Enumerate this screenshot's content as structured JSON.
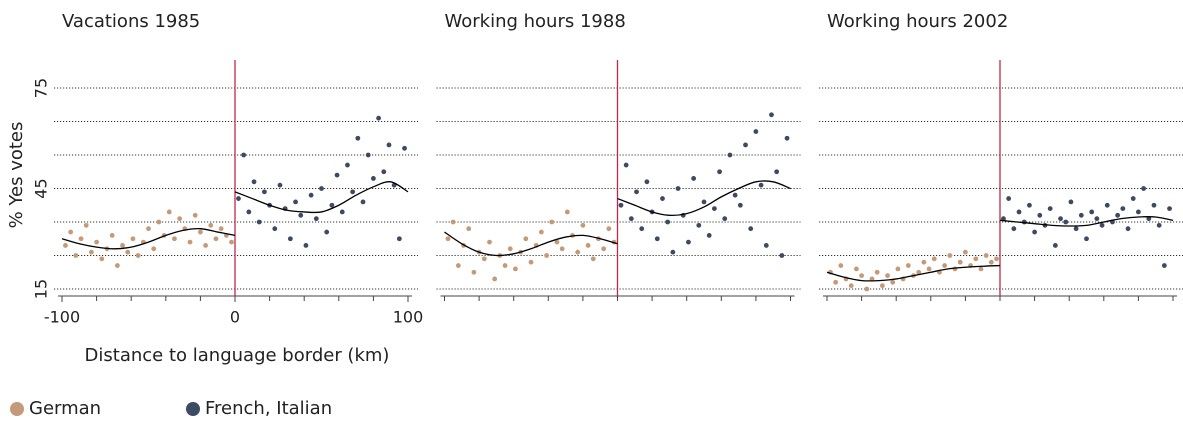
{
  "chart_data": [
    {
      "type": "scatter",
      "title": "Vacations 1985",
      "ylabel": "% Yes votes",
      "xlabel": "Distance to language border (km)",
      "xlim": [
        -100,
        100
      ],
      "ylim": [
        15,
        75
      ],
      "xticks": [
        -100,
        0,
        100
      ],
      "yticks": [
        15,
        45,
        75
      ],
      "ygrid": [
        15,
        25,
        35,
        45,
        55,
        65,
        75
      ],
      "xminor_ticks": [
        -80,
        -60,
        -40,
        -20,
        20,
        40,
        60,
        80
      ],
      "threshold": 0,
      "threshold_color": "#c0284a",
      "legend": "bottom-left",
      "series": [
        {
          "name": "German",
          "color": "#c49a78",
          "x": [
            -98,
            -95,
            -92,
            -89,
            -86,
            -83,
            -80,
            -77,
            -74,
            -71,
            -68,
            -65,
            -62,
            -59,
            -56,
            -53,
            -50,
            -47,
            -44,
            -41,
            -38,
            -35,
            -32,
            -29,
            -26,
            -23,
            -20,
            -17,
            -14,
            -11,
            -8,
            -5,
            -2
          ],
          "values": [
            28,
            32,
            25,
            30,
            34,
            26,
            29,
            24,
            27,
            31,
            22,
            28,
            26,
            30,
            25,
            29,
            33,
            27,
            35,
            31,
            38,
            30,
            36,
            33,
            29,
            37,
            32,
            28,
            34,
            30,
            33,
            31,
            29
          ]
        },
        {
          "name": "French, Italian",
          "color": "#3d4a63",
          "x": [
            2,
            5,
            8,
            11,
            14,
            17,
            20,
            23,
            26,
            29,
            32,
            35,
            38,
            41,
            44,
            47,
            50,
            53,
            56,
            59,
            62,
            65,
            68,
            71,
            74,
            77,
            80,
            83,
            86,
            89,
            92,
            95,
            98
          ],
          "values": [
            42,
            55,
            38,
            47,
            35,
            44,
            40,
            33,
            46,
            39,
            30,
            41,
            37,
            28,
            43,
            36,
            45,
            32,
            40,
            49,
            38,
            52,
            44,
            60,
            41,
            55,
            48,
            66,
            50,
            58,
            46,
            30,
            57
          ]
        }
      ],
      "fits": [
        {
          "color": "#000000",
          "x": [
            -100,
            -90,
            -80,
            -70,
            -60,
            -50,
            -40,
            -30,
            -20,
            -10,
            0
          ],
          "values": [
            30,
            28.5,
            27.5,
            27,
            27.5,
            29,
            31,
            32.5,
            33,
            32,
            31
          ]
        },
        {
          "color": "#000000",
          "x": [
            0,
            10,
            20,
            30,
            40,
            50,
            60,
            70,
            80,
            90,
            100
          ],
          "values": [
            44,
            42,
            40,
            38.5,
            38,
            38,
            40,
            43,
            45.5,
            47,
            44
          ]
        }
      ]
    },
    {
      "type": "scatter",
      "title": "Working hours 1988",
      "xlim": [
        -100,
        100
      ],
      "ylim": [
        15,
        75
      ],
      "ygrid": [
        15,
        25,
        35,
        45,
        55,
        65,
        75
      ],
      "xminor_ticks": [
        -100,
        -80,
        -60,
        -40,
        -20,
        0,
        20,
        40,
        60,
        80,
        100
      ],
      "threshold": 0,
      "threshold_color": "#c0284a",
      "series": [
        {
          "name": "German",
          "color": "#c49a78",
          "x": [
            -98,
            -95,
            -92,
            -89,
            -86,
            -83,
            -80,
            -77,
            -74,
            -71,
            -68,
            -65,
            -62,
            -59,
            -56,
            -53,
            -50,
            -47,
            -44,
            -41,
            -38,
            -35,
            -32,
            -29,
            -26,
            -23,
            -20,
            -17,
            -14,
            -11,
            -8,
            -5,
            -2
          ],
          "values": [
            30,
            35,
            22,
            28,
            33,
            20,
            26,
            24,
            29,
            18,
            25,
            22,
            27,
            21,
            26,
            30,
            23,
            28,
            32,
            25,
            35,
            29,
            27,
            38,
            31,
            26,
            34,
            28,
            24,
            30,
            27,
            33,
            29
          ]
        },
        {
          "name": "French, Italian",
          "color": "#3d4a63",
          "x": [
            2,
            5,
            8,
            11,
            14,
            17,
            20,
            23,
            26,
            29,
            32,
            35,
            38,
            41,
            44,
            47,
            50,
            53,
            56,
            59,
            62,
            65,
            68,
            71,
            74,
            77,
            80,
            83,
            86,
            89,
            92,
            95,
            98
          ],
          "values": [
            40,
            52,
            36,
            44,
            33,
            47,
            38,
            30,
            42,
            35,
            26,
            45,
            37,
            29,
            48,
            34,
            41,
            31,
            39,
            50,
            36,
            55,
            43,
            40,
            58,
            33,
            62,
            46,
            28,
            67,
            50,
            25,
            60
          ]
        }
      ],
      "fits": [
        {
          "color": "#000000",
          "x": [
            -100,
            -90,
            -80,
            -70,
            -60,
            -50,
            -40,
            -30,
            -20,
            -10,
            0
          ],
          "values": [
            32,
            28.5,
            26,
            25,
            25.5,
            27,
            29,
            30.5,
            31,
            30,
            28.5
          ]
        },
        {
          "color": "#000000",
          "x": [
            0,
            10,
            20,
            30,
            40,
            50,
            60,
            70,
            80,
            90,
            100
          ],
          "values": [
            42,
            40,
            38,
            37,
            37.5,
            39.5,
            42.5,
            45,
            47,
            47,
            45
          ]
        }
      ]
    },
    {
      "type": "scatter",
      "title": "Working hours 2002",
      "xlim": [
        -100,
        100
      ],
      "ylim": [
        15,
        75
      ],
      "ygrid": [
        15,
        25,
        35,
        45,
        55,
        65,
        75
      ],
      "xminor_ticks": [
        -100,
        -80,
        -60,
        -40,
        -20,
        0,
        20,
        40,
        60,
        80,
        100
      ],
      "threshold": 0,
      "threshold_color": "#c0284a",
      "series": [
        {
          "name": "German",
          "color": "#c49a78",
          "x": [
            -98,
            -95,
            -92,
            -89,
            -86,
            -83,
            -80,
            -77,
            -74,
            -71,
            -68,
            -65,
            -62,
            -59,
            -56,
            -53,
            -50,
            -47,
            -44,
            -41,
            -38,
            -35,
            -32,
            -29,
            -26,
            -23,
            -20,
            -17,
            -14,
            -11,
            -8,
            -5,
            -2
          ],
          "values": [
            20,
            17,
            22,
            18,
            16,
            21,
            19,
            15,
            18,
            20,
            16,
            19,
            17,
            21,
            18,
            22,
            19,
            20,
            23,
            21,
            24,
            20,
            22,
            25,
            21,
            23,
            26,
            22,
            24,
            21,
            25,
            23,
            24
          ]
        },
        {
          "name": "French, Italian",
          "color": "#3d4a63",
          "x": [
            2,
            5,
            8,
            11,
            14,
            17,
            20,
            23,
            26,
            29,
            32,
            35,
            38,
            41,
            44,
            47,
            50,
            53,
            56,
            59,
            62,
            65,
            68,
            71,
            74,
            77,
            80,
            83,
            86,
            89,
            92,
            95,
            98
          ],
          "values": [
            36,
            42,
            33,
            38,
            35,
            40,
            32,
            37,
            34,
            39,
            28,
            36,
            35,
            41,
            33,
            37,
            30,
            38,
            36,
            34,
            40,
            35,
            37,
            39,
            33,
            42,
            38,
            45,
            36,
            40,
            34,
            22,
            39
          ]
        }
      ],
      "fits": [
        {
          "color": "#000000",
          "x": [
            -100,
            -90,
            -80,
            -70,
            -60,
            -50,
            -40,
            -30,
            -20,
            -10,
            0
          ],
          "values": [
            20,
            18.5,
            17.5,
            17.5,
            18,
            19,
            20,
            21,
            21.5,
            21.8,
            22
          ]
        },
        {
          "color": "#000000",
          "x": [
            0,
            10,
            20,
            30,
            40,
            50,
            60,
            70,
            80,
            90,
            100
          ],
          "values": [
            35.5,
            35,
            34.5,
            34,
            33.8,
            34,
            35,
            36,
            36.5,
            36.5,
            35.5
          ]
        }
      ]
    }
  ]
}
